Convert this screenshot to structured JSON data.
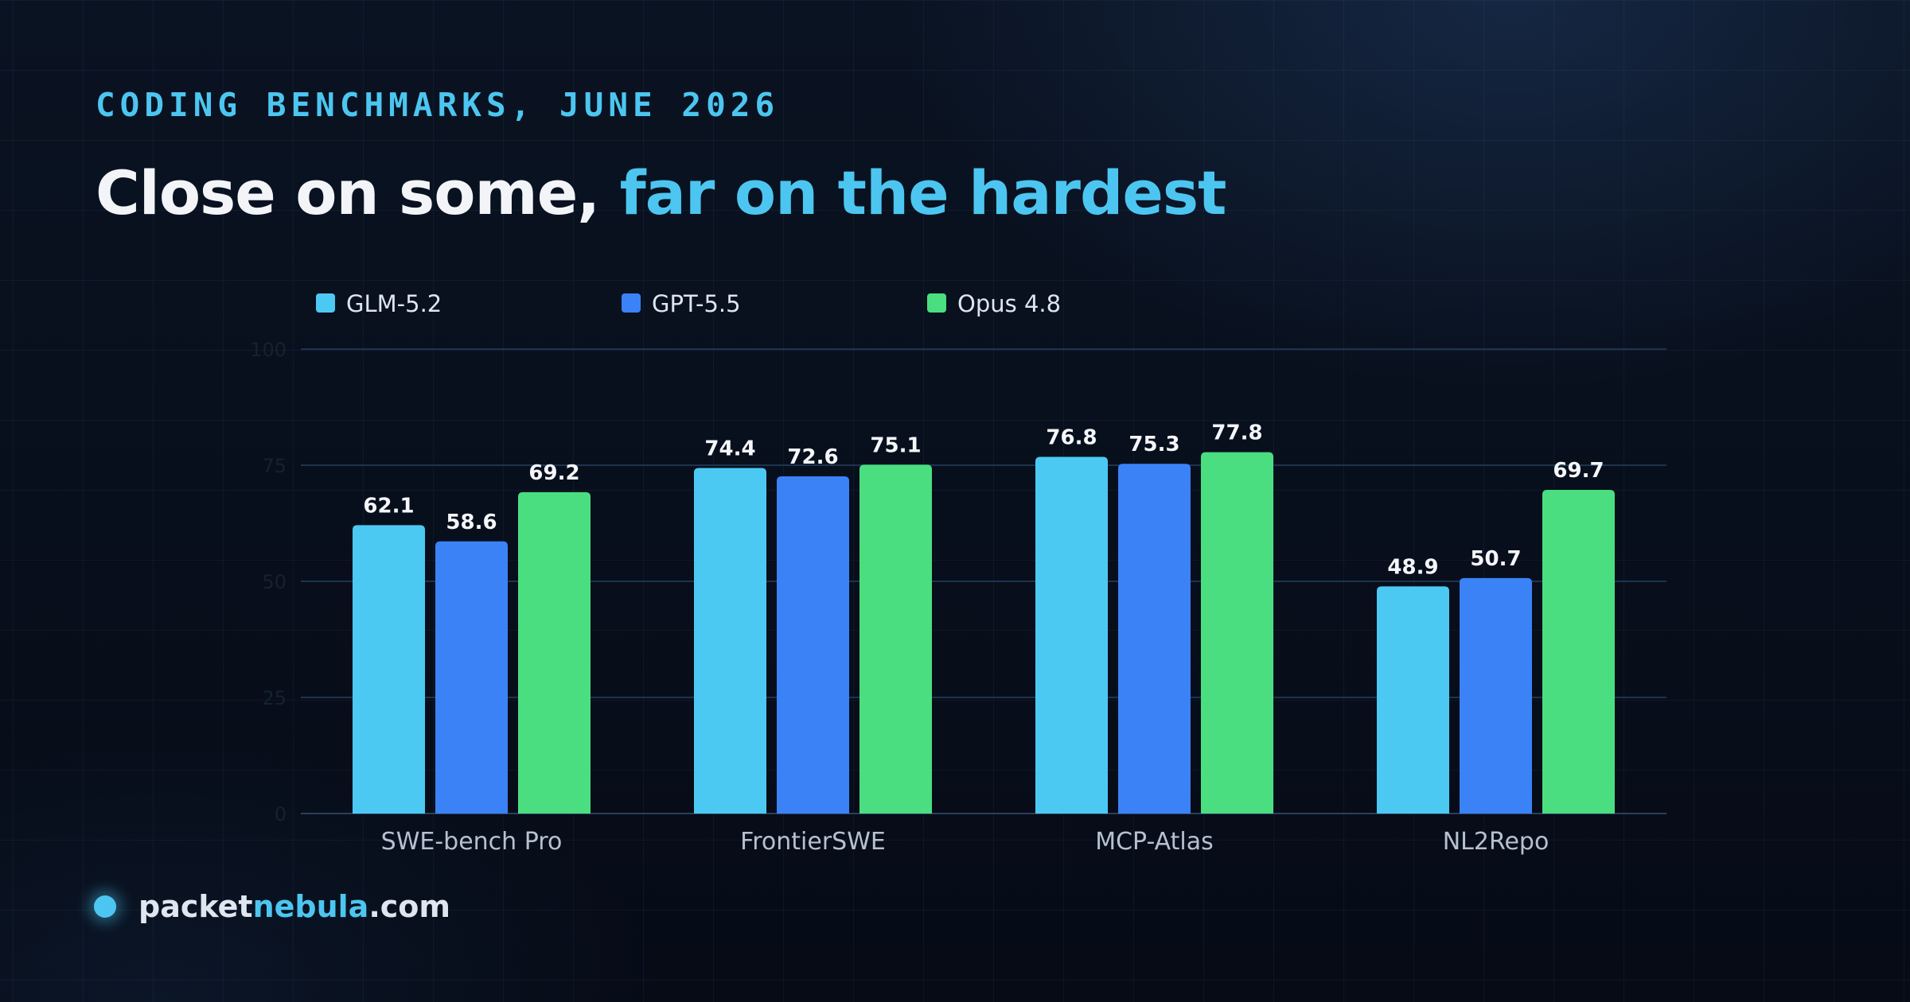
{
  "header": {
    "eyebrow": "CODING BENCHMARKS, JUNE 2026",
    "title_part1": "Close on some, ",
    "title_part2": "far on the hardest"
  },
  "brand": {
    "part1": "packet",
    "part2": "nebula",
    "part3": ".com"
  },
  "colors": {
    "accent": "#4cc6f0",
    "glm": "#4cc9f3",
    "gpt": "#3b82f6",
    "opus": "#4ade80"
  },
  "chart_data": {
    "type": "bar",
    "categories": [
      "SWE-bench Pro",
      "FrontierSWE",
      "MCP-Atlas",
      "NL2Repo"
    ],
    "series": [
      {
        "name": "GLM-5.2",
        "color": "#4cc9f3",
        "values": [
          62.1,
          74.4,
          76.8,
          48.9
        ]
      },
      {
        "name": "GPT-5.5",
        "color": "#3b82f6",
        "values": [
          58.6,
          72.6,
          75.3,
          50.7
        ]
      },
      {
        "name": "Opus 4.8",
        "color": "#4ade80",
        "values": [
          69.2,
          75.1,
          77.8,
          69.7
        ]
      }
    ],
    "yticks": [
      "0",
      "25",
      "50",
      "75",
      "100"
    ],
    "ylim": [
      0,
      100
    ],
    "grid": true,
    "legend_position": "top-left"
  }
}
